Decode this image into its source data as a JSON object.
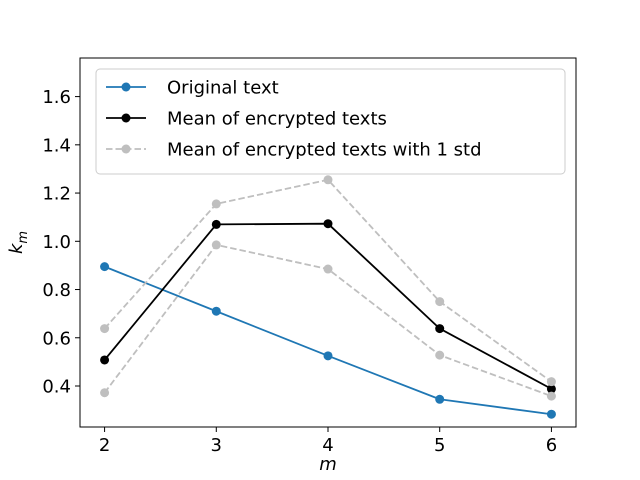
{
  "chart_data": {
    "type": "line",
    "title": "",
    "xlabel": "m",
    "ylabel": "k",
    "ylabel_sub": "m",
    "x": [
      2,
      3,
      4,
      5,
      6
    ],
    "xlim": [
      1.78,
      6.22
    ],
    "ylim": [
      0.23,
      1.76
    ],
    "xticks": [
      "2",
      "3",
      "4",
      "5",
      "6"
    ],
    "yticks": [
      "0.4",
      "0.6",
      "0.8",
      "1.0",
      "1.2",
      "1.4",
      "1.6"
    ],
    "ytick_values": [
      0.4,
      0.6,
      0.8,
      1.0,
      1.2,
      1.4,
      1.6
    ],
    "grid": false,
    "legend_position": "top-right",
    "series": [
      {
        "name": "Original text",
        "values": [
          0.895,
          0.71,
          0.525,
          0.345,
          0.283
        ],
        "color": "#1f77b4",
        "style": "solid"
      },
      {
        "name": "Mean of encrypted texts",
        "values": [
          0.508,
          1.07,
          1.073,
          0.638,
          0.388
        ],
        "color": "#000000",
        "style": "solid"
      },
      {
        "name": "Mean of encrypted texts with 1 std",
        "values": [
          0.638,
          1.155,
          1.255,
          0.75,
          0.418
        ],
        "color": "#bfbfbf",
        "style": "dashed"
      },
      {
        "name": "",
        "values": [
          0.372,
          0.985,
          0.885,
          0.528,
          0.358
        ],
        "color": "#bfbfbf",
        "style": "dashed"
      }
    ]
  }
}
